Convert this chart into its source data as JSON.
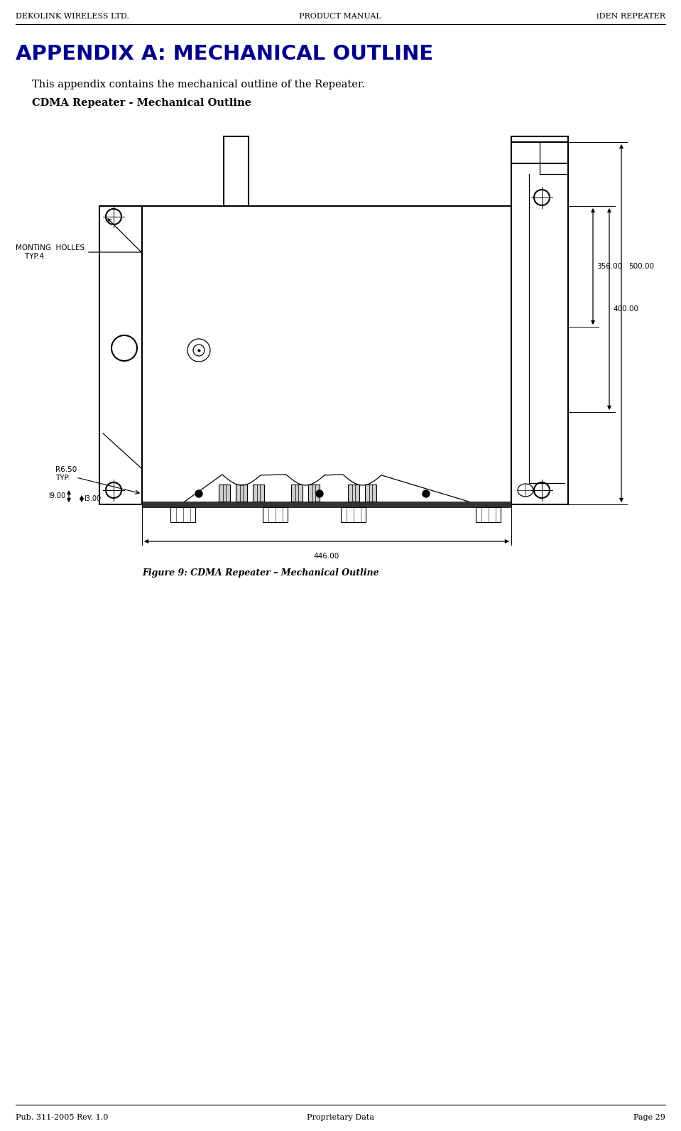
{
  "header_left": "DEKOLINK WIRELESS LTD.",
  "header_center": "PRODUCT MANUAL",
  "header_right": "iDEN REPEATER",
  "footer_left": "Pub. 311-2005 Rev. 1.0",
  "footer_center": "Proprietary Data",
  "footer_right": "Page 29",
  "title": "APPENDIX A: MECHANICAL OUTLINE",
  "subtitle": "This appendix contains the mechanical outline of the Repeater.",
  "section_label": "CDMA Repeater - Mechanical Outline",
  "figure_caption": "Figure 9: CDMA Repeater – Mechanical Outline",
  "dim_500": "500.00",
  "dim_356": "356.00",
  "dim_400": "400.00",
  "dim_446": "446.00",
  "dim_19": "l9.00",
  "dim_13": "l3.00",
  "label_r650": "R6.50\nTYP.",
  "label_mounting": "MONTING  HOLLES\n    TYP.4",
  "title_color": "#00008B",
  "line_color": "#000000",
  "bg_color": "#ffffff",
  "fig_width": 9.59,
  "fig_height": 15.92
}
